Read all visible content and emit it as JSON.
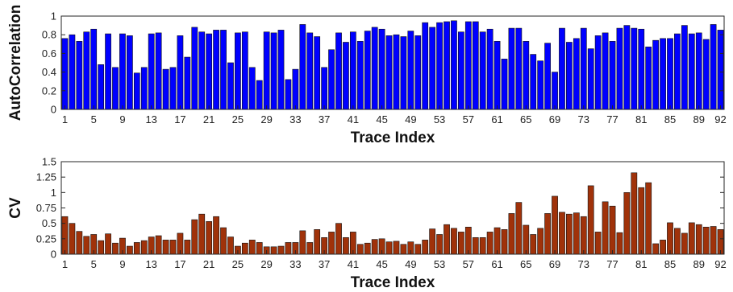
{
  "chart_data": [
    {
      "type": "bar",
      "title": "",
      "xlabel": "Trace Index",
      "ylabel": "AutoCorrelation",
      "ylim": [
        0,
        1
      ],
      "yticks": [
        "0",
        "0.2",
        "0.4",
        "0.6",
        "0.8",
        "1"
      ],
      "xticks": [
        "1",
        "5",
        "9",
        "13",
        "17",
        "21",
        "25",
        "29",
        "33",
        "37",
        "41",
        "45",
        "49",
        "53",
        "57",
        "61",
        "65",
        "69",
        "73",
        "77",
        "81",
        "85",
        "89",
        "92"
      ],
      "bar_color": "#0000ff",
      "categories": [
        1,
        2,
        3,
        4,
        5,
        6,
        7,
        8,
        9,
        10,
        11,
        12,
        13,
        14,
        15,
        16,
        17,
        18,
        19,
        20,
        21,
        22,
        23,
        24,
        25,
        26,
        27,
        28,
        29,
        30,
        31,
        32,
        33,
        34,
        35,
        36,
        37,
        38,
        39,
        40,
        41,
        42,
        43,
        44,
        45,
        46,
        47,
        48,
        49,
        50,
        51,
        52,
        53,
        54,
        55,
        56,
        57,
        58,
        59,
        60,
        61,
        62,
        63,
        64,
        65,
        66,
        67,
        68,
        69,
        70,
        71,
        72,
        73,
        74,
        75,
        76,
        77,
        78,
        79,
        80,
        81,
        82,
        83,
        84,
        85,
        86,
        87,
        88,
        89,
        90,
        91,
        92
      ],
      "values": [
        0.76,
        0.8,
        0.73,
        0.83,
        0.86,
        0.48,
        0.81,
        0.45,
        0.81,
        0.79,
        0.39,
        0.45,
        0.81,
        0.82,
        0.43,
        0.45,
        0.79,
        0.56,
        0.88,
        0.83,
        0.81,
        0.85,
        0.85,
        0.5,
        0.82,
        0.83,
        0.45,
        0.31,
        0.83,
        0.82,
        0.85,
        0.32,
        0.43,
        0.91,
        0.82,
        0.78,
        0.45,
        0.64,
        0.82,
        0.72,
        0.83,
        0.73,
        0.84,
        0.88,
        0.86,
        0.79,
        0.8,
        0.78,
        0.84,
        0.79,
        0.93,
        0.88,
        0.93,
        0.94,
        0.95,
        0.83,
        0.94,
        0.94,
        0.83,
        0.86,
        0.73,
        0.54,
        0.87,
        0.87,
        0.73,
        0.59,
        0.52,
        0.71,
        0.4,
        0.87,
        0.72,
        0.76,
        0.87,
        0.65,
        0.79,
        0.82,
        0.73,
        0.87,
        0.9,
        0.87,
        0.86,
        0.67,
        0.74,
        0.76,
        0.76,
        0.81,
        0.9,
        0.81,
        0.82,
        0.75,
        0.91,
        0.85
      ]
    },
    {
      "type": "bar",
      "title": "",
      "xlabel": "Trace Index",
      "ylabel": "CV",
      "ylim": [
        0,
        1.5
      ],
      "yticks": [
        "0",
        "0.25",
        "0.5",
        "0.75",
        "1",
        "1.25",
        "1.5"
      ],
      "xticks": [
        "1",
        "5",
        "9",
        "13",
        "17",
        "21",
        "25",
        "29",
        "33",
        "37",
        "41",
        "45",
        "49",
        "53",
        "57",
        "61",
        "65",
        "69",
        "73",
        "77",
        "81",
        "85",
        "89",
        "92"
      ],
      "bar_color": "#a0320a",
      "categories": [
        1,
        2,
        3,
        4,
        5,
        6,
        7,
        8,
        9,
        10,
        11,
        12,
        13,
        14,
        15,
        16,
        17,
        18,
        19,
        20,
        21,
        22,
        23,
        24,
        25,
        26,
        27,
        28,
        29,
        30,
        31,
        32,
        33,
        34,
        35,
        36,
        37,
        38,
        39,
        40,
        41,
        42,
        43,
        44,
        45,
        46,
        47,
        48,
        49,
        50,
        51,
        52,
        53,
        54,
        55,
        56,
        57,
        58,
        59,
        60,
        61,
        62,
        63,
        64,
        65,
        66,
        67,
        68,
        69,
        70,
        71,
        72,
        73,
        74,
        75,
        76,
        77,
        78,
        79,
        80,
        81,
        82,
        83,
        84,
        85,
        86,
        87,
        88,
        89,
        90,
        91,
        92
      ],
      "values": [
        0.61,
        0.5,
        0.37,
        0.29,
        0.32,
        0.22,
        0.33,
        0.18,
        0.26,
        0.13,
        0.19,
        0.22,
        0.28,
        0.3,
        0.23,
        0.23,
        0.34,
        0.23,
        0.56,
        0.65,
        0.53,
        0.61,
        0.43,
        0.28,
        0.13,
        0.18,
        0.23,
        0.19,
        0.12,
        0.12,
        0.13,
        0.19,
        0.19,
        0.38,
        0.19,
        0.4,
        0.27,
        0.36,
        0.5,
        0.27,
        0.36,
        0.16,
        0.18,
        0.24,
        0.25,
        0.2,
        0.21,
        0.16,
        0.2,
        0.16,
        0.23,
        0.41,
        0.32,
        0.48,
        0.42,
        0.36,
        0.44,
        0.27,
        0.27,
        0.36,
        0.43,
        0.4,
        0.66,
        0.84,
        0.47,
        0.32,
        0.42,
        0.66,
        0.94,
        0.68,
        0.65,
        0.67,
        0.61,
        1.11,
        0.36,
        0.85,
        0.78,
        0.35,
        1.0,
        1.32,
        1.08,
        1.16,
        0.17,
        0.23,
        0.51,
        0.42,
        0.34,
        0.51,
        0.48,
        0.44,
        0.45,
        0.4
      ]
    }
  ]
}
